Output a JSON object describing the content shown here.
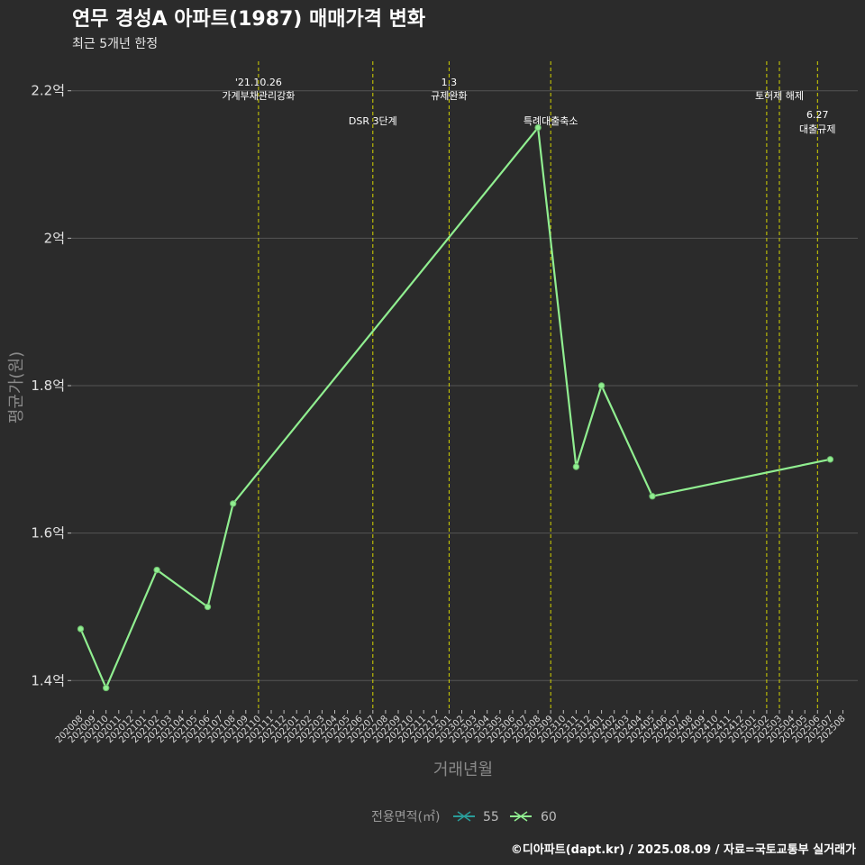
{
  "title": "연무 경성A 아파트(1987) 매매가격 변화",
  "subtitle": "최근 5개년 한정",
  "caption": "©디아파트(dapt.kr) / 2025.08.09 / 자료=국토교통부 실거래가",
  "chart_data": {
    "type": "line",
    "title": "연무 경성A 아파트(1987) 매매가격 변화",
    "xlabel": "거래년월",
    "ylabel": "평균가(원)",
    "ylim": [
      1.36,
      2.24
    ],
    "y_ticks": [
      {
        "value": 1.4,
        "label": "1.4억"
      },
      {
        "value": 1.6,
        "label": "1.6억"
      },
      {
        "value": 1.8,
        "label": "1.8억"
      },
      {
        "value": 2.0,
        "label": "2억"
      },
      {
        "value": 2.2,
        "label": "2.2억"
      }
    ],
    "categories": [
      "202008",
      "202009",
      "202010",
      "202011",
      "202012",
      "202101",
      "202102",
      "202103",
      "202104",
      "202105",
      "202106",
      "202107",
      "202108",
      "202109",
      "202110",
      "202111",
      "202112",
      "202201",
      "202202",
      "202203",
      "202204",
      "202205",
      "202206",
      "202207",
      "202208",
      "202209",
      "202210",
      "202211",
      "202212",
      "202301",
      "202302",
      "202303",
      "202304",
      "202305",
      "202306",
      "202307",
      "202308",
      "202309",
      "202310",
      "202311",
      "202312",
      "202401",
      "202402",
      "202403",
      "202404",
      "202405",
      "202406",
      "202407",
      "202408",
      "202409",
      "202410",
      "202411",
      "202412",
      "202501",
      "202502",
      "202503",
      "202504",
      "202505",
      "202506",
      "202507",
      "202508"
    ],
    "series": [
      {
        "name": "55",
        "color": "#2a9d9a",
        "points": []
      },
      {
        "name": "60",
        "color": "#90ee90",
        "points": [
          {
            "x": "202008",
            "y": 1.47
          },
          {
            "x": "202010",
            "y": 1.39
          },
          {
            "x": "202102",
            "y": 1.55
          },
          {
            "x": "202106",
            "y": 1.5
          },
          {
            "x": "202108",
            "y": 1.64
          },
          {
            "x": "202308",
            "y": 2.15
          },
          {
            "x": "202311",
            "y": 1.69
          },
          {
            "x": "202401",
            "y": 1.8
          },
          {
            "x": "202405",
            "y": 1.65
          },
          {
            "x": "202507",
            "y": 1.7
          }
        ]
      }
    ],
    "vlines": [
      {
        "x": 14.0,
        "lines": [
          "'21.10.26",
          "가계부채관리강화"
        ],
        "row": 0
      },
      {
        "x": 23.0,
        "lines": [
          "DSR 3단계"
        ],
        "row": 2
      },
      {
        "x": 29.0,
        "lines": [
          "1.3",
          "규제완화"
        ],
        "row": 0
      },
      {
        "x": 37.0,
        "lines": [
          "특례대출축소"
        ],
        "row": 2
      },
      {
        "x": 54.0,
        "lines": [],
        "row": 0
      },
      {
        "x": 55.0,
        "lines": [
          "토허제 해제"
        ],
        "row": 1
      },
      {
        "x": 58.0,
        "lines": [
          "6.27",
          "대출규제"
        ],
        "row": 3
      }
    ],
    "legend": {
      "title": "전용면적(㎡)",
      "placement": "bottom"
    },
    "colors": {
      "background": "#2b2b2b",
      "grid": "#555555",
      "vline": "#d4d400",
      "line": "#90ee90"
    }
  }
}
